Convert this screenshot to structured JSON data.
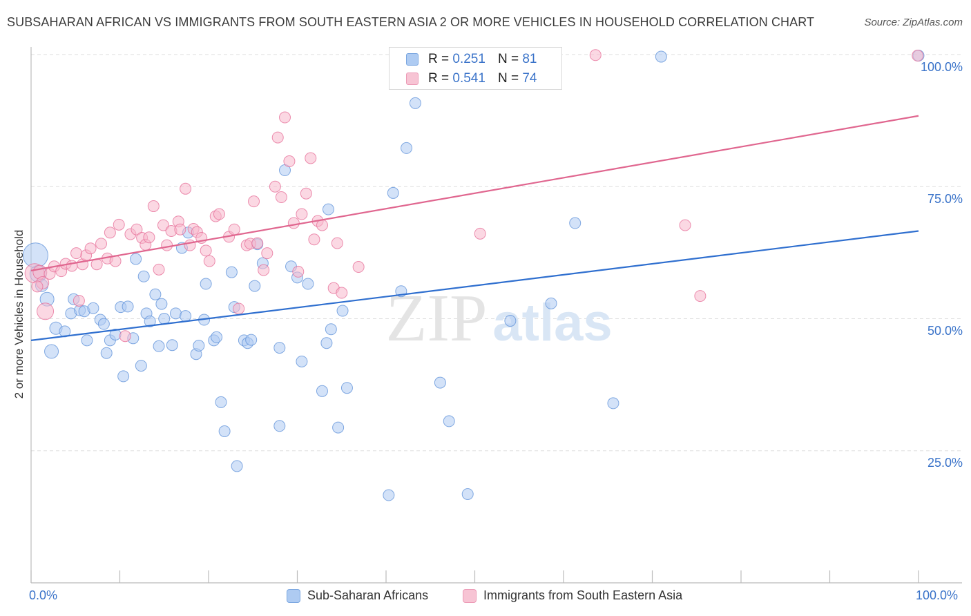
{
  "title": "SUBSAHARAN AFRICAN VS IMMIGRANTS FROM SOUTH EASTERN ASIA 2 OR MORE VEHICLES IN HOUSEHOLD CORRELATION CHART",
  "source": "Source: ZipAtlas.com",
  "watermark": {
    "zip": "ZIP",
    "atlas": "atlas"
  },
  "legend": {
    "rows": [
      {
        "r_label": "R =",
        "r_value": "0.251",
        "n_label": "N =",
        "n_value": "81",
        "color": "#aecbf2"
      },
      {
        "r_label": "R =",
        "r_value": "0.541",
        "n_label": "N =",
        "n_value": "74",
        "color": "#f7b8cc"
      }
    ]
  },
  "bottom_legend": [
    {
      "label": "Sub-Saharan Africans",
      "color": "#aecbf2"
    },
    {
      "label": "Immigrants from South Eastern Asia",
      "color": "#f7b8cc"
    }
  ],
  "x_tick_labels": {
    "left": "0.0%",
    "right": "100.0%"
  },
  "y_tick_labels": [
    "25.0%",
    "50.0%",
    "75.0%",
    "100.0%"
  ],
  "chart_data": {
    "type": "scatter",
    "title": "SUBSAHARAN AFRICAN VS IMMIGRANTS FROM SOUTH EASTERN ASIA 2 OR MORE VEHICLES IN HOUSEHOLD CORRELATION CHART",
    "xlabel": "",
    "ylabel": "2 or more Vehicles in Household",
    "xlim": [
      0,
      100
    ],
    "ylim": [
      0,
      100
    ],
    "y_ticks": [
      25,
      50,
      75,
      100
    ],
    "grid": "horizontal dashed",
    "legend_position": "top-center",
    "series": [
      {
        "name": "Sub-Saharan Africans",
        "color": "#5b8fd8",
        "fill": "#aecbf2",
        "trend": {
          "x": [
            0,
            100
          ],
          "y": [
            45.9,
            66.6
          ]
        },
        "points": [
          [
            0.5,
            62.0,
            18
          ],
          [
            0.8,
            58.5,
            12
          ],
          [
            1.2,
            56.3,
            9
          ],
          [
            1.8,
            53.7,
            10
          ],
          [
            2.3,
            43.8,
            10
          ],
          [
            2.8,
            48.2,
            9
          ],
          [
            3.8,
            47.6,
            8
          ],
          [
            4.5,
            51.0,
            8
          ],
          [
            4.8,
            53.7,
            8
          ],
          [
            5.5,
            51.6,
            8
          ],
          [
            6.0,
            51.4,
            8
          ],
          [
            6.3,
            45.9,
            8
          ],
          [
            7.0,
            52.0,
            8
          ],
          [
            7.8,
            49.8,
            8
          ],
          [
            8.2,
            49.0,
            8
          ],
          [
            8.5,
            43.5,
            8
          ],
          [
            8.9,
            45.9,
            8
          ],
          [
            9.5,
            47.0,
            8
          ],
          [
            10.1,
            52.2,
            8
          ],
          [
            10.4,
            39.1,
            8
          ],
          [
            10.9,
            52.3,
            8
          ],
          [
            11.5,
            46.3,
            8
          ],
          [
            11.8,
            61.3,
            8
          ],
          [
            12.4,
            41.1,
            8
          ],
          [
            12.7,
            58.0,
            8
          ],
          [
            13.0,
            51.0,
            8
          ],
          [
            13.4,
            49.5,
            8
          ],
          [
            14.0,
            54.6,
            8
          ],
          [
            14.4,
            44.8,
            8
          ],
          [
            14.7,
            52.8,
            8
          ],
          [
            15.0,
            50.0,
            8
          ],
          [
            15.9,
            45.0,
            8
          ],
          [
            16.3,
            51.0,
            8
          ],
          [
            17.0,
            63.4,
            8
          ],
          [
            17.4,
            50.5,
            8
          ],
          [
            17.7,
            66.3,
            8
          ],
          [
            18.6,
            43.3,
            8
          ],
          [
            18.9,
            44.9,
            8
          ],
          [
            19.5,
            49.8,
            8
          ],
          [
            19.7,
            56.6,
            8
          ],
          [
            20.6,
            45.9,
            8
          ],
          [
            20.9,
            46.5,
            8
          ],
          [
            21.4,
            34.2,
            8
          ],
          [
            21.8,
            28.7,
            8
          ],
          [
            22.6,
            58.8,
            8
          ],
          [
            22.9,
            52.2,
            8
          ],
          [
            23.2,
            22.1,
            8
          ],
          [
            24.0,
            45.9,
            8
          ],
          [
            24.4,
            45.4,
            8
          ],
          [
            24.8,
            46.0,
            8
          ],
          [
            25.2,
            56.2,
            8
          ],
          [
            25.5,
            64.1,
            8
          ],
          [
            26.1,
            60.5,
            8
          ],
          [
            28.0,
            44.5,
            8
          ],
          [
            28.0,
            29.7,
            8
          ],
          [
            28.6,
            78.1,
            8
          ],
          [
            29.3,
            59.9,
            8
          ],
          [
            30.0,
            57.8,
            8
          ],
          [
            30.5,
            41.9,
            8
          ],
          [
            31.2,
            56.6,
            8
          ],
          [
            32.8,
            36.3,
            8
          ],
          [
            33.3,
            45.4,
            8
          ],
          [
            33.5,
            70.7,
            8
          ],
          [
            33.8,
            48.0,
            8
          ],
          [
            34.6,
            29.4,
            8
          ],
          [
            35.1,
            51.5,
            8
          ],
          [
            35.6,
            36.9,
            8
          ],
          [
            40.3,
            16.6,
            8
          ],
          [
            40.8,
            73.8,
            8
          ],
          [
            41.7,
            55.2,
            8
          ],
          [
            42.3,
            82.3,
            8
          ],
          [
            43.3,
            90.8,
            8
          ],
          [
            46.1,
            37.9,
            8
          ],
          [
            47.1,
            30.6,
            8
          ],
          [
            49.2,
            16.8,
            8
          ],
          [
            54.0,
            49.6,
            8
          ],
          [
            58.6,
            52.9,
            8
          ],
          [
            61.3,
            68.1,
            8
          ],
          [
            65.6,
            34.0,
            8
          ],
          [
            71.0,
            99.6,
            8
          ],
          [
            100.0,
            99.8,
            8
          ]
        ]
      },
      {
        "name": "Immigrants from South Eastern Asia",
        "color": "#e56b96",
        "fill": "#f7b8cc",
        "trend": {
          "x": [
            0,
            100
          ],
          "y": [
            59.1,
            88.4
          ]
        },
        "points": [
          [
            0.4,
            58.6,
            14
          ],
          [
            1.0,
            58.8,
            10
          ],
          [
            1.3,
            56.8,
            9
          ],
          [
            1.6,
            51.4,
            12
          ],
          [
            2.1,
            58.5,
            8
          ],
          [
            2.6,
            59.9,
            8
          ],
          [
            3.4,
            59.0,
            8
          ],
          [
            3.9,
            60.4,
            8
          ],
          [
            4.6,
            60.0,
            8
          ],
          [
            5.4,
            53.4,
            8
          ],
          [
            5.8,
            60.3,
            8
          ],
          [
            6.2,
            62.0,
            8
          ],
          [
            6.7,
            63.3,
            8
          ],
          [
            7.4,
            60.3,
            8
          ],
          [
            7.9,
            64.2,
            8
          ],
          [
            8.6,
            61.4,
            8
          ],
          [
            8.9,
            66.3,
            8
          ],
          [
            9.5,
            60.9,
            8
          ],
          [
            9.9,
            67.8,
            8
          ],
          [
            10.6,
            46.7,
            8
          ],
          [
            11.2,
            66.0,
            8
          ],
          [
            11.9,
            66.9,
            8
          ],
          [
            12.5,
            65.3,
            8
          ],
          [
            12.9,
            64.0,
            8
          ],
          [
            13.3,
            65.4,
            8
          ],
          [
            13.8,
            71.3,
            8
          ],
          [
            14.4,
            59.3,
            8
          ],
          [
            14.9,
            67.7,
            8
          ],
          [
            15.3,
            63.9,
            8
          ],
          [
            15.8,
            66.6,
            8
          ],
          [
            16.6,
            68.4,
            8
          ],
          [
            16.8,
            66.9,
            8
          ],
          [
            17.4,
            74.6,
            8
          ],
          [
            17.9,
            63.9,
            8
          ],
          [
            18.3,
            67.0,
            8
          ],
          [
            18.7,
            66.4,
            8
          ],
          [
            19.2,
            65.3,
            8
          ],
          [
            19.7,
            62.9,
            8
          ],
          [
            20.1,
            60.9,
            8
          ],
          [
            20.8,
            69.4,
            8
          ],
          [
            21.2,
            69.8,
            8
          ],
          [
            22.3,
            65.5,
            8
          ],
          [
            22.9,
            66.9,
            8
          ],
          [
            23.4,
            51.9,
            8
          ],
          [
            24.3,
            63.9,
            8
          ],
          [
            24.7,
            64.2,
            8
          ],
          [
            25.1,
            72.2,
            8
          ],
          [
            25.5,
            64.3,
            8
          ],
          [
            26.2,
            59.2,
            8
          ],
          [
            26.6,
            62.4,
            8
          ],
          [
            27.5,
            75.0,
            8
          ],
          [
            27.8,
            84.3,
            8
          ],
          [
            28.2,
            73.0,
            8
          ],
          [
            28.6,
            88.1,
            8
          ],
          [
            29.1,
            79.8,
            8
          ],
          [
            29.6,
            68.1,
            8
          ],
          [
            30.1,
            58.9,
            8
          ],
          [
            30.5,
            69.8,
            8
          ],
          [
            31.0,
            73.7,
            8
          ],
          [
            31.5,
            80.4,
            8
          ],
          [
            31.9,
            65.0,
            8
          ],
          [
            32.3,
            68.5,
            8
          ],
          [
            32.8,
            67.7,
            8
          ],
          [
            34.1,
            55.8,
            8
          ],
          [
            34.5,
            64.3,
            8
          ],
          [
            35.0,
            54.9,
            8
          ],
          [
            36.9,
            59.8,
            8
          ],
          [
            50.6,
            66.1,
            8
          ],
          [
            63.6,
            99.9,
            8
          ],
          [
            73.7,
            67.7,
            8
          ],
          [
            75.4,
            54.3,
            8
          ],
          [
            99.9,
            99.8,
            8
          ],
          [
            0.7,
            56.1,
            8
          ],
          [
            5.1,
            62.4,
            8
          ]
        ]
      }
    ]
  }
}
